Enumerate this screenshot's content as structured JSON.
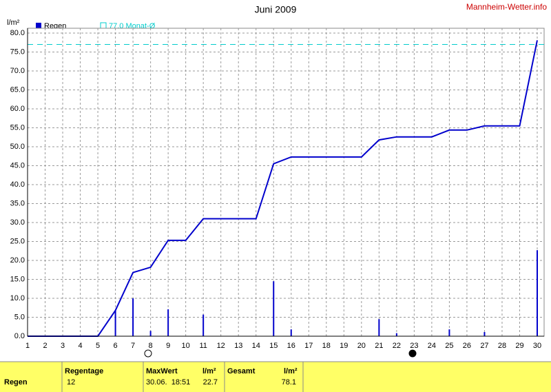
{
  "chart_data": {
    "type": "bar-line",
    "title": "Juni 2009",
    "source": "Mannheim-Wetter.info",
    "y_label": "l/m²",
    "x": [
      1,
      2,
      3,
      4,
      5,
      6,
      7,
      8,
      9,
      10,
      11,
      12,
      13,
      14,
      15,
      16,
      17,
      18,
      19,
      20,
      21,
      22,
      23,
      24,
      25,
      26,
      27,
      28,
      29,
      30
    ],
    "xlim": [
      1,
      30
    ],
    "series": [
      {
        "name": "Regen",
        "color": "#0000cc",
        "kind": "bar",
        "values": [
          0,
          0,
          0,
          0,
          0,
          6.8,
          10.0,
          1.4,
          7.1,
          0,
          5.7,
          0,
          0,
          0,
          14.5,
          1.8,
          0,
          0,
          0,
          0,
          4.5,
          0.8,
          0,
          0,
          1.8,
          0,
          1.1,
          0,
          0,
          22.7
        ]
      },
      {
        "color": "#0000cc",
        "kind": "line",
        "values": [
          0,
          0,
          0,
          0,
          0,
          6.8,
          16.8,
          18.2,
          25.3,
          25.3,
          31.0,
          31.0,
          31.0,
          31.0,
          45.5,
          47.3,
          47.3,
          47.3,
          47.3,
          47.3,
          51.8,
          52.6,
          52.6,
          52.6,
          54.4,
          54.4,
          55.5,
          55.5,
          55.5,
          78.1
        ]
      }
    ],
    "reference": {
      "name": "77.0 Monat-Ø",
      "value": 77.0,
      "color": "#00cccc"
    },
    "ylim": [
      0,
      80
    ],
    "yticks": [
      {
        "value": 0,
        "label": "0.0"
      },
      {
        "value": 5,
        "label": "5.0"
      },
      {
        "value": 10,
        "label": "10.0"
      },
      {
        "value": 15,
        "label": "15.0"
      },
      {
        "value": 20,
        "label": "20.0"
      },
      {
        "value": 25,
        "label": "25.0"
      },
      {
        "value": 30,
        "label": "30.0"
      },
      {
        "value": 35,
        "label": "35.0"
      },
      {
        "value": 40,
        "label": "40.0"
      },
      {
        "value": 45,
        "label": "45.0"
      },
      {
        "value": 50,
        "label": "50.0"
      },
      {
        "value": 55,
        "label": "55.0"
      },
      {
        "value": 60,
        "label": "60.0"
      },
      {
        "value": 65,
        "label": "65.0"
      },
      {
        "value": 70,
        "label": "70.0"
      },
      {
        "value": 75,
        "label": "75.0"
      },
      {
        "value": 80,
        "label": "80.0"
      }
    ],
    "grid": true
  },
  "table": {
    "headers": [
      "Regentage",
      "MaxWert",
      "l/m²",
      "Gesamt",
      "l/m²"
    ],
    "rows": [
      [
        "Regen",
        "12",
        "30.06.  18:51",
        "22.7",
        "",
        "78.1"
      ]
    ]
  }
}
